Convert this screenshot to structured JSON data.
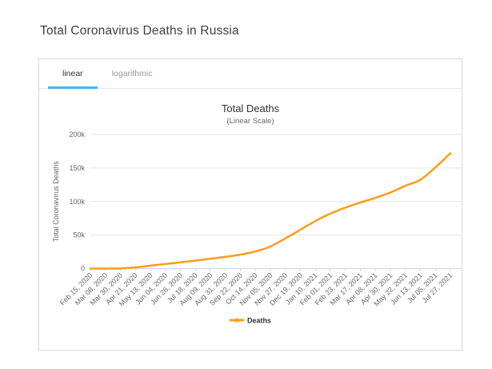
{
  "page": {
    "title": "Total Coronavirus Deaths in Russia"
  },
  "tabs": [
    {
      "label": "linear",
      "active": true
    },
    {
      "label": "logarithmic",
      "active": false
    }
  ],
  "colors": {
    "tab_accent": "#3ebceb",
    "line": "#FA9E1B",
    "grid": "#e6e6e6",
    "axis_line": "#ccd6eb",
    "tick_label": "#666666",
    "chart_title": "#333333",
    "chart_subtitle": "#666666",
    "legend_text": "#333333",
    "card_border": "#d8d8d8"
  },
  "chart_data": {
    "type": "line",
    "title": "Total Deaths",
    "subtitle": "(Linear Scale)",
    "xlabel": "",
    "ylabel": "Total Coronavirus Deaths",
    "ylim": [
      0,
      200000
    ],
    "yticks": [
      0,
      50000,
      100000,
      150000,
      200000
    ],
    "ytick_labels": [
      "0",
      "50k",
      "100k",
      "150k",
      "200k"
    ],
    "grid": true,
    "legend_position": "bottom-center",
    "categories": [
      "Feb 15, 2020",
      "Mar 08, 2020",
      "Mar 30, 2020",
      "Apr 21, 2020",
      "May 13, 2020",
      "Jun 04, 2020",
      "Jun 26, 2020",
      "Jul 18, 2020",
      "Aug 09, 2020",
      "Aug 31, 2020",
      "Sep 22, 2020",
      "Oct 14, 2020",
      "Nov 05, 2020",
      "Nov 27, 2020",
      "Dec 19, 2020",
      "Jan 10, 2021",
      "Feb 01, 2021",
      "Feb 23, 2021",
      "Mar 17, 2021",
      "Apr 08, 2021",
      "Apr 30, 2021",
      "May 22, 2021",
      "Jun 13, 2021",
      "Jul 05, 2021",
      "Jul 27, 2021"
    ],
    "series": [
      {
        "name": "Deaths",
        "color": "#FA9E1B",
        "values": [
          0,
          0,
          200,
          1800,
          4300,
          6800,
          9200,
          11800,
          14600,
          17500,
          20700,
          25500,
          33000,
          45000,
          58000,
          71000,
          82000,
          91000,
          98500,
          105500,
          113500,
          123500,
          132500,
          151000,
          172000
        ]
      }
    ]
  }
}
